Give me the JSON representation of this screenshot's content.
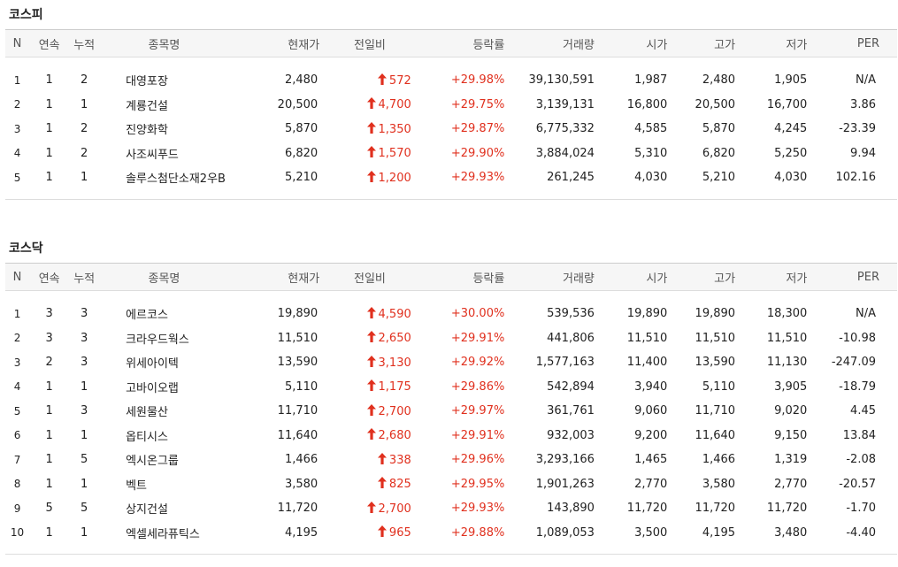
{
  "kospi": {
    "title": "코스피",
    "headers": [
      "N",
      "연속",
      "누적",
      "종목명",
      "현재가",
      "전일비",
      "등락률",
      "거래량",
      "시가",
      "고가",
      "저가",
      "PER"
    ],
    "rows": [
      {
        "n": "1",
        "streak": "1",
        "total": "2",
        "name": "대영포장",
        "price": "2,480",
        "change": "572",
        "rate": "+29.98%",
        "volume": "39,130,591",
        "open": "1,987",
        "high": "2,480",
        "low": "1,905",
        "per": "N/A"
      },
      {
        "n": "2",
        "streak": "1",
        "total": "1",
        "name": "계룡건설",
        "price": "20,500",
        "change": "4,700",
        "rate": "+29.75%",
        "volume": "3,139,131",
        "open": "16,800",
        "high": "20,500",
        "low": "16,700",
        "per": "3.86"
      },
      {
        "n": "3",
        "streak": "1",
        "total": "2",
        "name": "진양화학",
        "price": "5,870",
        "change": "1,350",
        "rate": "+29.87%",
        "volume": "6,775,332",
        "open": "4,585",
        "high": "5,870",
        "low": "4,245",
        "per": "-23.39"
      },
      {
        "n": "4",
        "streak": "1",
        "total": "2",
        "name": "사조씨푸드",
        "price": "6,820",
        "change": "1,570",
        "rate": "+29.90%",
        "volume": "3,884,024",
        "open": "5,310",
        "high": "6,820",
        "low": "5,250",
        "per": "9.94"
      },
      {
        "n": "5",
        "streak": "1",
        "total": "1",
        "name": "솔루스첨단소재2우B",
        "price": "5,210",
        "change": "1,200",
        "rate": "+29.93%",
        "volume": "261,245",
        "open": "4,030",
        "high": "5,210",
        "low": "4,030",
        "per": "102.16"
      }
    ]
  },
  "kosdaq": {
    "title": "코스닥",
    "headers": [
      "N",
      "연속",
      "누적",
      "종목명",
      "현재가",
      "전일비",
      "등락률",
      "거래량",
      "시가",
      "고가",
      "저가",
      "PER"
    ],
    "rows": [
      {
        "n": "1",
        "streak": "3",
        "total": "3",
        "name": "에르코스",
        "price": "19,890",
        "change": "4,590",
        "rate": "+30.00%",
        "volume": "539,536",
        "open": "19,890",
        "high": "19,890",
        "low": "18,300",
        "per": "N/A"
      },
      {
        "n": "2",
        "streak": "3",
        "total": "3",
        "name": "크라우드웍스",
        "price": "11,510",
        "change": "2,650",
        "rate": "+29.91%",
        "volume": "441,806",
        "open": "11,510",
        "high": "11,510",
        "low": "11,510",
        "per": "-10.98"
      },
      {
        "n": "3",
        "streak": "2",
        "total": "3",
        "name": "위세아이텍",
        "price": "13,590",
        "change": "3,130",
        "rate": "+29.92%",
        "volume": "1,577,163",
        "open": "11,400",
        "high": "13,590",
        "low": "11,130",
        "per": "-247.09"
      },
      {
        "n": "4",
        "streak": "1",
        "total": "1",
        "name": "고바이오랩",
        "price": "5,110",
        "change": "1,175",
        "rate": "+29.86%",
        "volume": "542,894",
        "open": "3,940",
        "high": "5,110",
        "low": "3,905",
        "per": "-18.79"
      },
      {
        "n": "5",
        "streak": "1",
        "total": "3",
        "name": "세원물산",
        "price": "11,710",
        "change": "2,700",
        "rate": "+29.97%",
        "volume": "361,761",
        "open": "9,060",
        "high": "11,710",
        "low": "9,020",
        "per": "4.45"
      },
      {
        "n": "6",
        "streak": "1",
        "total": "1",
        "name": "옵티시스",
        "price": "11,640",
        "change": "2,680",
        "rate": "+29.91%",
        "volume": "932,003",
        "open": "9,200",
        "high": "11,640",
        "low": "9,150",
        "per": "13.84"
      },
      {
        "n": "7",
        "streak": "1",
        "total": "5",
        "name": "엑시온그룹",
        "price": "1,466",
        "change": "338",
        "rate": "+29.96%",
        "volume": "3,293,166",
        "open": "1,465",
        "high": "1,466",
        "low": "1,319",
        "per": "-2.08"
      },
      {
        "n": "8",
        "streak": "1",
        "total": "1",
        "name": "벡트",
        "price": "3,580",
        "change": "825",
        "rate": "+29.95%",
        "volume": "1,901,263",
        "open": "2,770",
        "high": "3,580",
        "low": "2,770",
        "per": "-20.57"
      },
      {
        "n": "9",
        "streak": "5",
        "total": "5",
        "name": "상지건설",
        "price": "11,720",
        "change": "2,700",
        "rate": "+29.93%",
        "volume": "143,890",
        "open": "11,720",
        "high": "11,720",
        "low": "11,720",
        "per": "-1.70"
      },
      {
        "n": "10",
        "streak": "1",
        "total": "1",
        "name": "엑셀세라퓨틱스",
        "price": "4,195",
        "change": "965",
        "rate": "+29.88%",
        "volume": "1,089,053",
        "open": "3,500",
        "high": "4,195",
        "low": "3,480",
        "per": "-4.40"
      }
    ]
  },
  "colors": {
    "up": "#e0301e",
    "header_bg": "#f6f6f6",
    "border": "#dddddd"
  },
  "icons": {
    "change": "up-arrow-icon"
  }
}
